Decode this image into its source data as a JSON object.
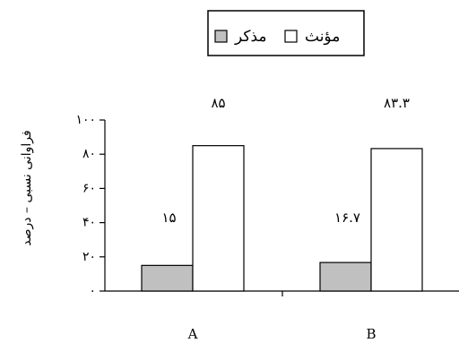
{
  "chart_data": {
    "type": "bar",
    "categories": [
      "A",
      "B"
    ],
    "series": [
      {
        "name": "مذکر",
        "color": "#c0c0c0",
        "values": [
          15,
          16.7
        ],
        "value_labels": [
          "۱۵",
          "۱۶.۷"
        ]
      },
      {
        "name": "مؤنث",
        "color": "#ffffff",
        "values": [
          85,
          83.3
        ],
        "value_labels": [
          "۸۵",
          "۸۳.۳"
        ]
      }
    ],
    "ylabel": "فراوانی نسبی – درصد",
    "ylim": [
      0,
      100
    ],
    "yticks": [
      0,
      20,
      40,
      60,
      80,
      100
    ],
    "ytick_labels": [
      "۰",
      "۲۰",
      "۴۰",
      "۶۰",
      "۸۰",
      "۱۰۰"
    ],
    "legend": {
      "position": "top-center"
    },
    "grid": false
  }
}
